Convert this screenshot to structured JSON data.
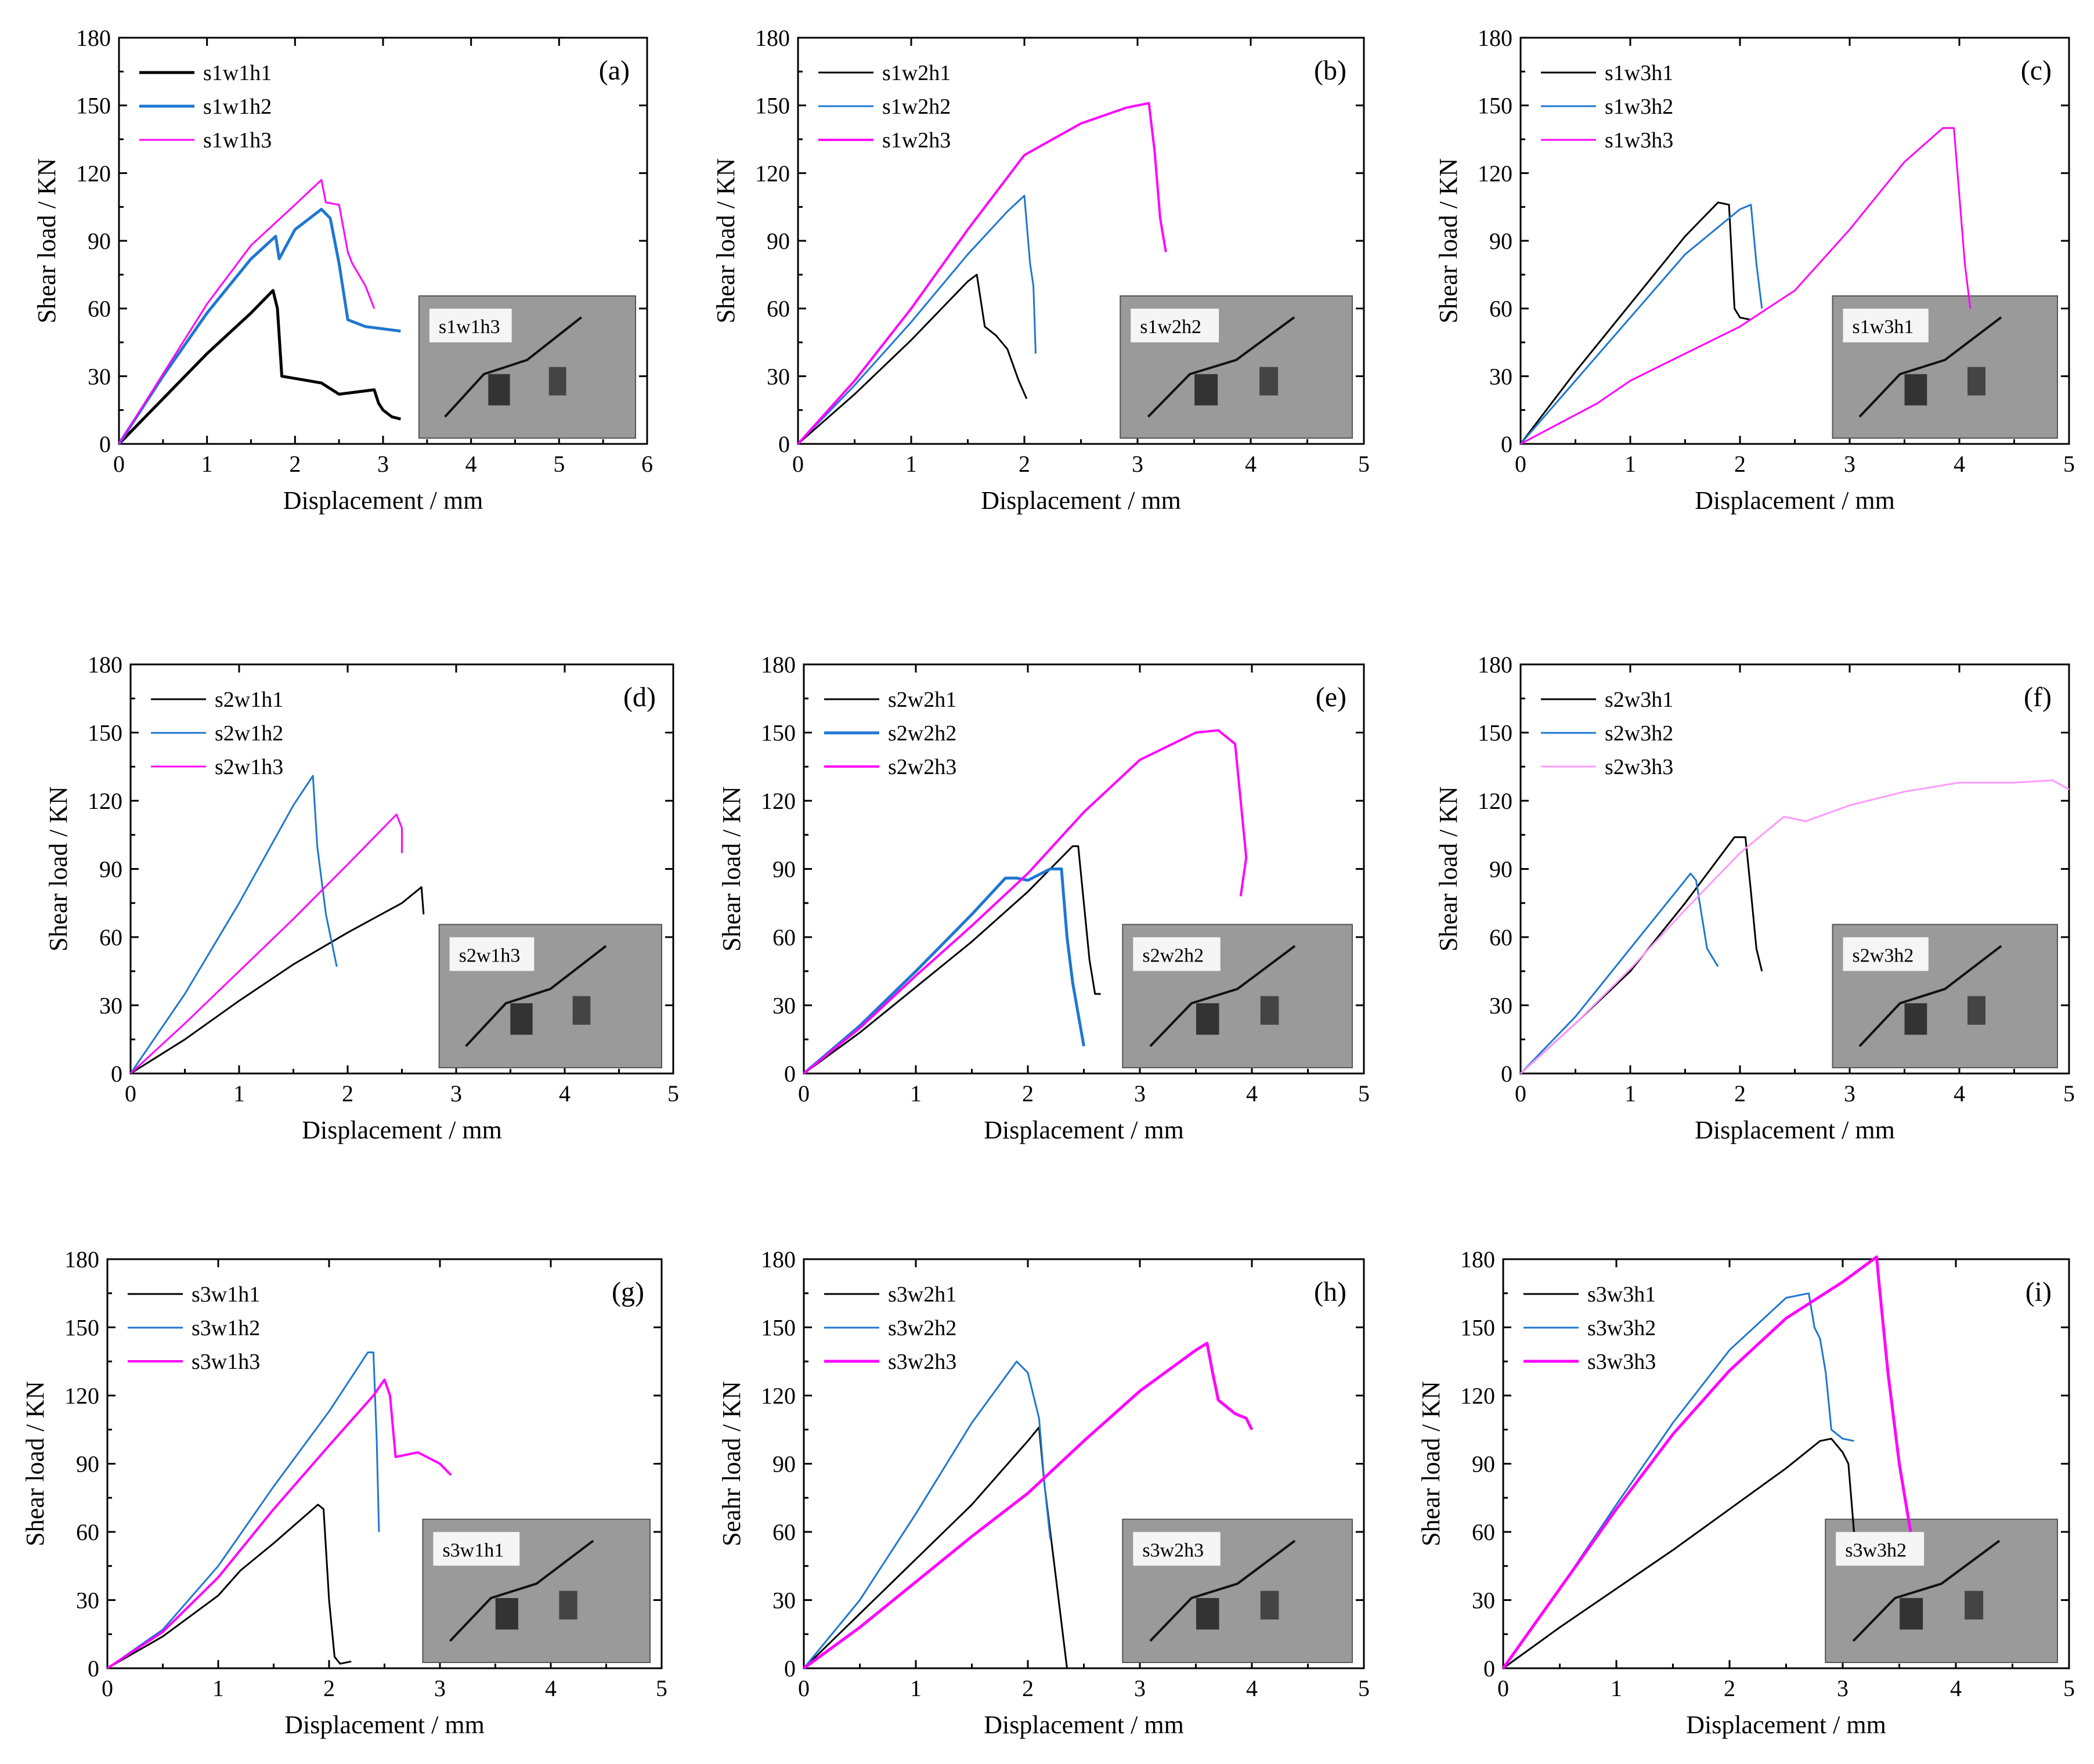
{
  "figure": {
    "colors": {
      "black": "#000000",
      "blue": "#1f77d0",
      "magenta": "#ff00ff",
      "highlight": "#ff0000",
      "inset_bg": "#9a9a9a"
    }
  },
  "chart_data": [
    {
      "type": "line",
      "panel": "(a)",
      "xlabel": "Displacement / mm",
      "ylabel": "Shear load / KN",
      "xlim": [
        0,
        6
      ],
      "ylim": [
        0,
        180
      ],
      "xticks": [
        "0",
        "1",
        "2",
        "3",
        "4",
        "5",
        "6"
      ],
      "yticks": [
        "0",
        "30",
        "60",
        "90",
        "120",
        "150",
        "180"
      ],
      "legend": {
        "placement": "top-left",
        "highlight": 2
      },
      "inset_label": "s1w1h3",
      "series": [
        {
          "name": "s1w1h1",
          "color": "#000000",
          "width": 5,
          "x": [
            0,
            0.5,
            1,
            1.5,
            1.75,
            1.8,
            1.85,
            2.0,
            2.3,
            2.5,
            2.9,
            2.95,
            3.0,
            3.1,
            3.2
          ],
          "y": [
            0,
            20,
            40,
            58,
            68,
            60,
            30,
            29,
            27,
            22,
            24,
            18,
            15,
            12,
            11
          ]
        },
        {
          "name": "s1w1h2",
          "color": "#1f77d0",
          "width": 5,
          "x": [
            0,
            0.5,
            1,
            1.5,
            1.78,
            1.82,
            2.0,
            2.3,
            2.4,
            2.5,
            2.6,
            2.8,
            3.0,
            3.2
          ],
          "y": [
            0,
            30,
            58,
            82,
            92,
            82,
            95,
            104,
            100,
            80,
            55,
            52,
            51,
            50
          ]
        },
        {
          "name": "s1w1h3",
          "color": "#ff00ff",
          "width": 3,
          "x": [
            0,
            0.5,
            1,
            1.5,
            2.0,
            2.3,
            2.35,
            2.5,
            2.6,
            2.65,
            2.8,
            2.9
          ],
          "y": [
            0,
            31,
            62,
            88,
            106,
            117,
            107,
            106,
            85,
            80,
            70,
            60
          ]
        }
      ]
    },
    {
      "type": "line",
      "panel": "(b)",
      "xlabel": "Displacement / mm",
      "ylabel": "Shear load / KN",
      "xlim": [
        0,
        5
      ],
      "ylim": [
        0,
        180
      ],
      "xticks": [
        "0",
        "1",
        "2",
        "3",
        "4",
        "5"
      ],
      "yticks": [
        "0",
        "30",
        "60",
        "90",
        "120",
        "150",
        "180"
      ],
      "legend": {
        "placement": "top-left",
        "highlight": 1
      },
      "inset_label": "s1w2h2",
      "series": [
        {
          "name": "s1w2h1",
          "color": "#000000",
          "width": 3,
          "x": [
            0,
            0.5,
            1.0,
            1.5,
            1.58,
            1.65,
            1.75,
            1.85,
            1.95,
            2.02
          ],
          "y": [
            0,
            22,
            46,
            72,
            75,
            52,
            48,
            42,
            28,
            20
          ]
        },
        {
          "name": "s1w2h2",
          "color": "#1f77d0",
          "width": 3,
          "x": [
            0,
            0.5,
            1.0,
            1.5,
            1.85,
            2.0,
            2.05,
            2.08,
            2.1
          ],
          "y": [
            0,
            26,
            54,
            84,
            103,
            110,
            80,
            70,
            40
          ]
        },
        {
          "name": "s1w2h3",
          "color": "#ff00ff",
          "width": 4,
          "x": [
            0,
            0.5,
            1.0,
            1.5,
            2.0,
            2.5,
            2.9,
            3.1,
            3.15,
            3.2,
            3.25
          ],
          "y": [
            0,
            28,
            60,
            95,
            128,
            142,
            149,
            151,
            130,
            100,
            85
          ]
        }
      ]
    },
    {
      "type": "line",
      "panel": "(c)",
      "xlabel": "Displacement / mm",
      "ylabel": "Shear load / KN",
      "xlim": [
        0,
        5
      ],
      "ylim": [
        0,
        180
      ],
      "xticks": [
        "0",
        "1",
        "2",
        "3",
        "4",
        "5"
      ],
      "yticks": [
        "0",
        "30",
        "60",
        "90",
        "120",
        "150",
        "180"
      ],
      "legend": {
        "placement": "top-left",
        "highlight": 0
      },
      "inset_label": "s1w3h1",
      "series": [
        {
          "name": "s1w3h1",
          "color": "#000000",
          "width": 3,
          "x": [
            0,
            0.5,
            1.0,
            1.5,
            1.8,
            1.9,
            1.95,
            2.0,
            2.1
          ],
          "y": [
            0,
            32,
            62,
            92,
            107,
            106,
            60,
            56,
            55
          ]
        },
        {
          "name": "s1w3h2",
          "color": "#1f77d0",
          "width": 3,
          "x": [
            0,
            0.5,
            1.0,
            1.5,
            2.0,
            2.1,
            2.15,
            2.2
          ],
          "y": [
            0,
            28,
            56,
            84,
            104,
            106,
            80,
            60
          ]
        },
        {
          "name": "s1w3h3",
          "color": "#ff00ff",
          "width": 3,
          "x": [
            0,
            0.7,
            1.0,
            1.5,
            2.0,
            2.5,
            3.0,
            3.5,
            3.85,
            3.95,
            4.0,
            4.05,
            4.1
          ],
          "y": [
            0,
            18,
            28,
            40,
            52,
            68,
            95,
            125,
            140,
            140,
            110,
            80,
            60
          ]
        }
      ]
    },
    {
      "type": "line",
      "panel": "(d)",
      "xlabel": "Displacement / mm",
      "ylabel": "Shear load / KN",
      "xlim": [
        0,
        5
      ],
      "ylim": [
        0,
        180
      ],
      "xticks": [
        "0",
        "1",
        "2",
        "3",
        "4",
        "5"
      ],
      "yticks": [
        "0",
        "30",
        "60",
        "90",
        "120",
        "150",
        "180"
      ],
      "legend": {
        "placement": "top-left",
        "highlight": 2
      },
      "inset_label": "s2w1h3",
      "series": [
        {
          "name": "s2w1h1",
          "color": "#000000",
          "width": 3,
          "x": [
            0,
            0.5,
            1.0,
            1.5,
            2.0,
            2.5,
            2.68,
            2.7
          ],
          "y": [
            0,
            15,
            32,
            48,
            62,
            75,
            82,
            70
          ]
        },
        {
          "name": "s2w1h2",
          "color": "#1f77d0",
          "width": 3,
          "x": [
            0,
            0.5,
            1.0,
            1.5,
            1.68,
            1.72,
            1.8,
            1.9
          ],
          "y": [
            0,
            35,
            75,
            118,
            131,
            100,
            70,
            47
          ]
        },
        {
          "name": "s2w1h3",
          "color": "#ff00ff",
          "width": 3,
          "x": [
            0,
            0.5,
            1.0,
            1.5,
            2.0,
            2.45,
            2.5,
            2.5
          ],
          "y": [
            0,
            22,
            45,
            68,
            92,
            114,
            108,
            97
          ]
        }
      ]
    },
    {
      "type": "line",
      "panel": "(e)",
      "xlabel": "Displacement / mm",
      "ylabel": "Shear load / KN",
      "xlim": [
        0,
        5
      ],
      "ylim": [
        0,
        180
      ],
      "xticks": [
        "0",
        "1",
        "2",
        "3",
        "4",
        "5"
      ],
      "yticks": [
        "0",
        "30",
        "60",
        "90",
        "120",
        "150",
        "180"
      ],
      "legend": {
        "placement": "top-left",
        "highlight": 1
      },
      "inset_label": "s2w2h2",
      "series": [
        {
          "name": "s2w2h1",
          "color": "#000000",
          "width": 3,
          "x": [
            0,
            0.5,
            1.0,
            1.5,
            2.0,
            2.4,
            2.45,
            2.55,
            2.6,
            2.65
          ],
          "y": [
            0,
            18,
            38,
            58,
            80,
            100,
            100,
            50,
            35,
            35
          ]
        },
        {
          "name": "s2w2h2",
          "color": "#1f77d0",
          "width": 5,
          "x": [
            0,
            0.5,
            1.0,
            1.5,
            1.8,
            1.9,
            2.0,
            2.2,
            2.3,
            2.35,
            2.4,
            2.5
          ],
          "y": [
            0,
            21,
            45,
            70,
            86,
            86,
            85,
            90,
            90,
            60,
            40,
            12
          ]
        },
        {
          "name": "s2w2h3",
          "color": "#ff00ff",
          "width": 4,
          "x": [
            0,
            0.5,
            1.0,
            1.5,
            2.0,
            2.5,
            3.0,
            3.5,
            3.7,
            3.85,
            3.9,
            3.95,
            3.9
          ],
          "y": [
            0,
            20,
            43,
            65,
            88,
            115,
            138,
            150,
            151,
            145,
            120,
            95,
            78
          ]
        }
      ]
    },
    {
      "type": "line",
      "panel": "(f)",
      "xlabel": "Displacement / mm",
      "ylabel": "Shear load / KN",
      "xlim": [
        0,
        5
      ],
      "ylim": [
        0,
        180
      ],
      "xticks": [
        "0",
        "1",
        "2",
        "3",
        "4",
        "5"
      ],
      "yticks": [
        "0",
        "30",
        "60",
        "90",
        "120",
        "150",
        "180"
      ],
      "legend": {
        "placement": "top-left",
        "highlight": 1
      },
      "inset_label": "s2w3h2",
      "series": [
        {
          "name": "s2w3h1",
          "color": "#000000",
          "width": 3,
          "x": [
            0,
            0.5,
            1.0,
            1.5,
            1.95,
            2.05,
            2.1,
            2.15,
            2.2
          ],
          "y": [
            0,
            22,
            45,
            75,
            104,
            104,
            80,
            55,
            45
          ]
        },
        {
          "name": "s2w3h2",
          "color": "#1f77d0",
          "width": 3,
          "x": [
            0,
            0.5,
            1.0,
            1.5,
            1.55,
            1.6,
            1.65,
            1.7,
            1.8
          ],
          "y": [
            0,
            25,
            55,
            85,
            88,
            85,
            70,
            55,
            47
          ]
        },
        {
          "name": "s2w3h3",
          "color": "#ff99ff",
          "width": 3,
          "x": [
            0,
            0.5,
            1.0,
            1.5,
            2.0,
            2.4,
            2.6,
            3.0,
            3.5,
            4.0,
            4.5,
            4.85,
            5.0
          ],
          "y": [
            0,
            22,
            46,
            72,
            97,
            113,
            111,
            118,
            124,
            128,
            128,
            129,
            125
          ]
        }
      ]
    },
    {
      "type": "line",
      "panel": "(g)",
      "xlabel": "Displacement / mm",
      "ylabel": "Shear load / KN",
      "xlim": [
        0,
        5
      ],
      "ylim": [
        0,
        180
      ],
      "xticks": [
        "0",
        "1",
        "2",
        "3",
        "4",
        "5"
      ],
      "yticks": [
        "0",
        "30",
        "60",
        "90",
        "120",
        "150",
        "180"
      ],
      "legend": {
        "placement": "top-left",
        "highlight": 0
      },
      "inset_label": "s3w1h1",
      "series": [
        {
          "name": "s3w1h1",
          "color": "#000000",
          "width": 3,
          "x": [
            0,
            0.5,
            1.0,
            1.2,
            1.5,
            1.9,
            1.95,
            2.0,
            2.05,
            2.1,
            2.2
          ],
          "y": [
            0,
            14,
            32,
            43,
            55,
            72,
            70,
            30,
            5,
            2,
            3
          ]
        },
        {
          "name": "s3w1h2",
          "color": "#1f77d0",
          "width": 3,
          "x": [
            0,
            0.5,
            1.0,
            1.5,
            2.0,
            2.35,
            2.4,
            2.43,
            2.45
          ],
          "y": [
            0,
            17,
            45,
            80,
            113,
            139,
            139,
            100,
            60
          ]
        },
        {
          "name": "s3w1h3",
          "color": "#ff00ff",
          "width": 4,
          "x": [
            0,
            0.5,
            1.0,
            1.5,
            2.0,
            2.4,
            2.5,
            2.55,
            2.6,
            2.8,
            3.0,
            3.1
          ],
          "y": [
            0,
            16,
            40,
            70,
            98,
            120,
            127,
            120,
            93,
            95,
            90,
            85
          ]
        }
      ]
    },
    {
      "type": "line",
      "panel": "(h)",
      "xlabel": "Displacement / mm",
      "ylabel": "Seahr load / KN",
      "xlim": [
        0,
        5
      ],
      "ylim": [
        0,
        180
      ],
      "xticks": [
        "0",
        "1",
        "2",
        "3",
        "4",
        "5"
      ],
      "yticks": [
        "0",
        "30",
        "60",
        "90",
        "120",
        "150",
        "180"
      ],
      "legend": {
        "placement": "top-left",
        "highlight": 2
      },
      "inset_label": "s3w2h3",
      "series": [
        {
          "name": "s3w2h1",
          "color": "#000000",
          "width": 3,
          "x": [
            0,
            0.5,
            1.0,
            1.5,
            2.0,
            2.1,
            2.15,
            2.25,
            2.35
          ],
          "y": [
            0,
            24,
            48,
            72,
            100,
            106,
            80,
            40,
            0
          ]
        },
        {
          "name": "s3w2h2",
          "color": "#1f77d0",
          "width": 3,
          "x": [
            0,
            0.5,
            1.0,
            1.5,
            1.9,
            2.0,
            2.1,
            2.15,
            2.2
          ],
          "y": [
            0,
            30,
            68,
            108,
            135,
            130,
            110,
            80,
            57
          ]
        },
        {
          "name": "s3w2h3",
          "color": "#ff00ff",
          "width": 5,
          "x": [
            0,
            0.5,
            1.0,
            1.5,
            2.0,
            2.5,
            3.0,
            3.5,
            3.6,
            3.65,
            3.7,
            3.85,
            3.95,
            4.0
          ],
          "y": [
            0,
            18,
            38,
            58,
            77,
            100,
            122,
            140,
            143,
            130,
            118,
            112,
            110,
            105
          ]
        }
      ]
    },
    {
      "type": "line",
      "panel": "(i)",
      "xlabel": "Displacement / mm",
      "ylabel": "Shear load / KN",
      "xlim": [
        0,
        5
      ],
      "ylim": [
        0,
        180
      ],
      "xticks": [
        "0",
        "1",
        "2",
        "3",
        "4",
        "5"
      ],
      "yticks": [
        "0",
        "30",
        "60",
        "90",
        "120",
        "150",
        "180"
      ],
      "legend": {
        "placement": "top-left",
        "highlight": 1
      },
      "inset_label": "s3w3h2",
      "series": [
        {
          "name": "s3w3h1",
          "color": "#000000",
          "width": 3,
          "x": [
            0,
            0.5,
            1.0,
            1.5,
            2.0,
            2.5,
            2.8,
            2.9,
            3.0,
            3.05,
            3.1
          ],
          "y": [
            0,
            18,
            35,
            52,
            70,
            88,
            100,
            101,
            95,
            90,
            60
          ]
        },
        {
          "name": "s3w3h2",
          "color": "#1f77d0",
          "width": 3,
          "x": [
            0,
            0.5,
            1.0,
            1.5,
            2.0,
            2.5,
            2.7,
            2.75,
            2.8,
            2.85,
            2.9,
            3.0,
            3.1
          ],
          "y": [
            0,
            35,
            72,
            108,
            140,
            163,
            165,
            150,
            145,
            130,
            105,
            101,
            100
          ]
        },
        {
          "name": "s3w3h3",
          "color": "#ff00ff",
          "width": 5,
          "x": [
            0,
            0.5,
            1.0,
            1.5,
            2.0,
            2.5,
            3.0,
            3.3,
            3.32,
            3.4,
            3.5,
            3.6
          ],
          "y": [
            0,
            35,
            70,
            103,
            131,
            154,
            170,
            181,
            170,
            130,
            90,
            60
          ]
        }
      ]
    }
  ]
}
